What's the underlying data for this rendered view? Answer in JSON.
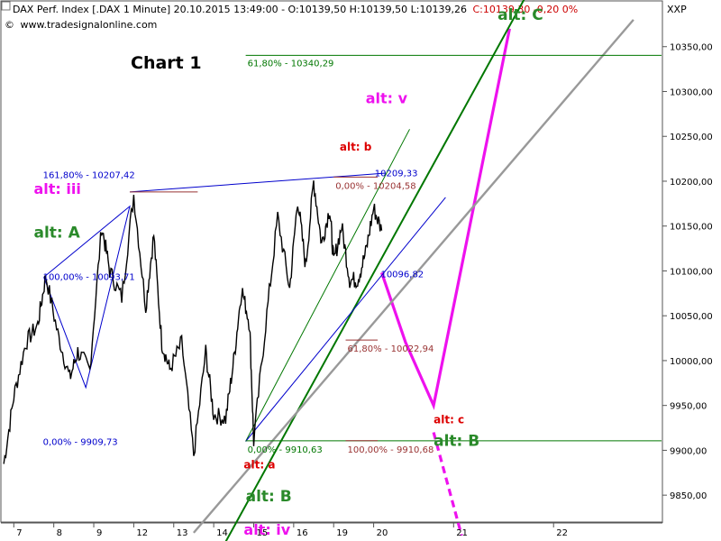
{
  "header": {
    "instrument": "DAX Perf. Index [.DAX  1 Minute] 20.10.2015 13:49:00 - O:10139,50 H:10139,50 L:10139,26",
    "last": "C:10139,30 -0,20 0%",
    "source": "www.tradesignalonline.com",
    "symbol": "XXP"
  },
  "colors": {
    "price": "#000000",
    "green": "#007700",
    "green_text": "#2a8a2a",
    "magenta": "#ee11ee",
    "blue": "#0000cc",
    "red": "#dd0000",
    "gray": "#999999",
    "axis": "#555555",
    "fib_red": "#993333"
  },
  "chart_data": {
    "type": "line",
    "title": "Chart 1",
    "xlabel": "",
    "ylabel": "",
    "ylim": [
      9820,
      10400
    ],
    "x_range": [
      6.7,
      23.2
    ],
    "y_ticks": [
      9850,
      9900,
      9950,
      10000,
      10050,
      10100,
      10150,
      10200,
      10250,
      10300,
      10350
    ],
    "y_tick_labels": [
      "9850,00",
      "9900,00",
      "9950,00",
      "10000,00",
      "10050,00",
      "10100,00",
      "10150,00",
      "10200,00",
      "10250,00",
      "10300,00",
      "10350,00"
    ],
    "x_ticks": [
      7,
      8,
      9,
      12,
      13,
      14,
      15,
      16,
      19,
      20,
      21,
      22
    ],
    "x_tick_labels": [
      "7",
      "8",
      "9",
      "12",
      "13",
      "14",
      "15",
      "16",
      "19",
      "20",
      "21",
      "22"
    ],
    "x_tick_positions": [
      7.0,
      8.0,
      9.0,
      10.0,
      11.0,
      12.0,
      13.0,
      14.0,
      15.0,
      16.0,
      18.0,
      20.5
    ],
    "grid": false,
    "price_series": {
      "name": "DAX Perf. Index",
      "x": [
        6.75,
        7.0,
        7.3,
        7.6,
        7.8,
        8.1,
        8.4,
        8.6,
        8.9,
        9.2,
        9.4,
        9.7,
        10.0,
        10.3,
        10.5,
        10.7,
        10.9,
        11.2,
        11.5,
        11.8,
        12.0,
        12.3,
        12.5,
        12.7,
        12.9,
        13.0,
        13.3,
        13.6,
        13.9,
        14.1,
        14.3,
        14.5,
        14.7,
        14.9,
        15.0,
        15.2,
        15.4,
        15.6,
        15.8,
        16.0,
        16.2
      ],
      "y": [
        9885,
        9960,
        10020,
        10040,
        10095,
        10030,
        9980,
        10010,
        9990,
        10150,
        10100,
        10070,
        10185,
        10060,
        10140,
        10020,
        9990,
        10020,
        9895,
        10010,
        9940,
        9935,
        10000,
        10080,
        10040,
        9910,
        10040,
        10160,
        10080,
        10180,
        10105,
        10200,
        10130,
        10170,
        10110,
        10150,
        10090,
        10090,
        10120,
        10170,
        10145
      ]
    },
    "series": [
      {
        "name": "",
        "style": "magenta-forecast",
        "x": [
          16.2,
          16.8,
          17.5,
          19.4
        ],
        "y": [
          10098,
          10020,
          9950,
          10370
        ]
      },
      {
        "name": "",
        "style": "magenta-dashed",
        "x": [
          17.5,
          18.2
        ],
        "y": [
          9920,
          9805
        ]
      },
      {
        "name": "",
        "style": "green-thick",
        "x": [
          12.2,
          20.1
        ],
        "y": [
          9790,
          10430
        ]
      },
      {
        "name": "",
        "style": "green-thin",
        "x": [
          12.8,
          16.9
        ],
        "y": [
          9910,
          10258
        ]
      },
      {
        "name": "",
        "style": "gray-thick",
        "x": [
          11.5,
          22.5
        ],
        "y": [
          9808,
          10380
        ]
      },
      {
        "name": "",
        "style": "blue-channel",
        "x": [
          12.8,
          17.8
        ],
        "y": [
          9910,
          10182
        ]
      },
      {
        "name": "",
        "style": "blue-resistance",
        "x": [
          9.9,
          16.3
        ],
        "y": [
          10188,
          10209
        ]
      },
      {
        "name": "",
        "style": "blue-impulse",
        "x": [
          7.75,
          9.9,
          8.8,
          7.75
        ],
        "y": [
          10093,
          10172,
          9970,
          10093
        ]
      }
    ],
    "hlines": [
      {
        "label": "61,80% - 10340,29",
        "y": 10340.29,
        "x_from": 12.8,
        "x_to": 23.2,
        "color": "green"
      },
      {
        "label": "0,00% - 9910,63",
        "y": 9910.63,
        "x_from": 12.8,
        "x_to": 23.2,
        "color": "green"
      },
      {
        "label": "100,00% - 9910,68",
        "y": 9910.68,
        "x_from": 15.3,
        "x_to": 16.1,
        "color": "fib_red"
      },
      {
        "label": "61,80% - 10022,94",
        "y": 10022.94,
        "x_from": 15.3,
        "x_to": 16.1,
        "color": "fib_red"
      },
      {
        "label": "0,00% - 10204,58",
        "y": 10204.58,
        "x_from": 15.0,
        "x_to": 16.1,
        "color": "fib_red"
      },
      {
        "label": "",
        "y": 10188,
        "x_from": 9.9,
        "x_to": 11.6,
        "color": "fib_red"
      }
    ],
    "annotations": [
      {
        "text": "161,80% - 10207,42",
        "x": 7.75,
        "y": 10207.42,
        "color": "blue"
      },
      {
        "text": "100,00% - 10093,71",
        "x": 7.75,
        "y": 10093.71,
        "color": "blue"
      },
      {
        "text": "0,00% - 9909,73",
        "x": 7.75,
        "y": 9909.73,
        "color": "blue"
      },
      {
        "text": "10209,33",
        "x": 16.05,
        "y": 10209.33,
        "color": "blue"
      },
      {
        "text": "10096,82",
        "x": 16.2,
        "y": 10096.82,
        "color": "blue"
      }
    ],
    "wave_labels": [
      {
        "text": "alt: C",
        "x": 19.1,
        "y": 10380,
        "color": "green_text",
        "size": 17
      },
      {
        "text": "alt: v",
        "x": 15.8,
        "y": 10287,
        "color": "magenta",
        "size": 16
      },
      {
        "text": "alt: b",
        "x": 15.15,
        "y": 10234,
        "color": "red",
        "size": 12
      },
      {
        "text": "alt: iii",
        "x": 7.5,
        "y": 10186,
        "color": "magenta",
        "size": 16
      },
      {
        "text": "alt: A",
        "x": 7.5,
        "y": 10137,
        "color": "green_text",
        "size": 17
      },
      {
        "text": "alt: c",
        "x": 17.5,
        "y": 9930,
        "color": "red",
        "size": 12
      },
      {
        "text": "alt: B",
        "x": 17.5,
        "y": 9905,
        "color": "green_text",
        "size": 17
      },
      {
        "text": "alt: a",
        "x": 12.75,
        "y": 9880,
        "color": "red",
        "size": 12
      },
      {
        "text": "alt: B",
        "x": 12.8,
        "y": 9843,
        "color": "green_text",
        "size": 17
      },
      {
        "text": "alt: iv",
        "x": 12.75,
        "y": 9806,
        "color": "magenta",
        "size": 16
      }
    ]
  }
}
